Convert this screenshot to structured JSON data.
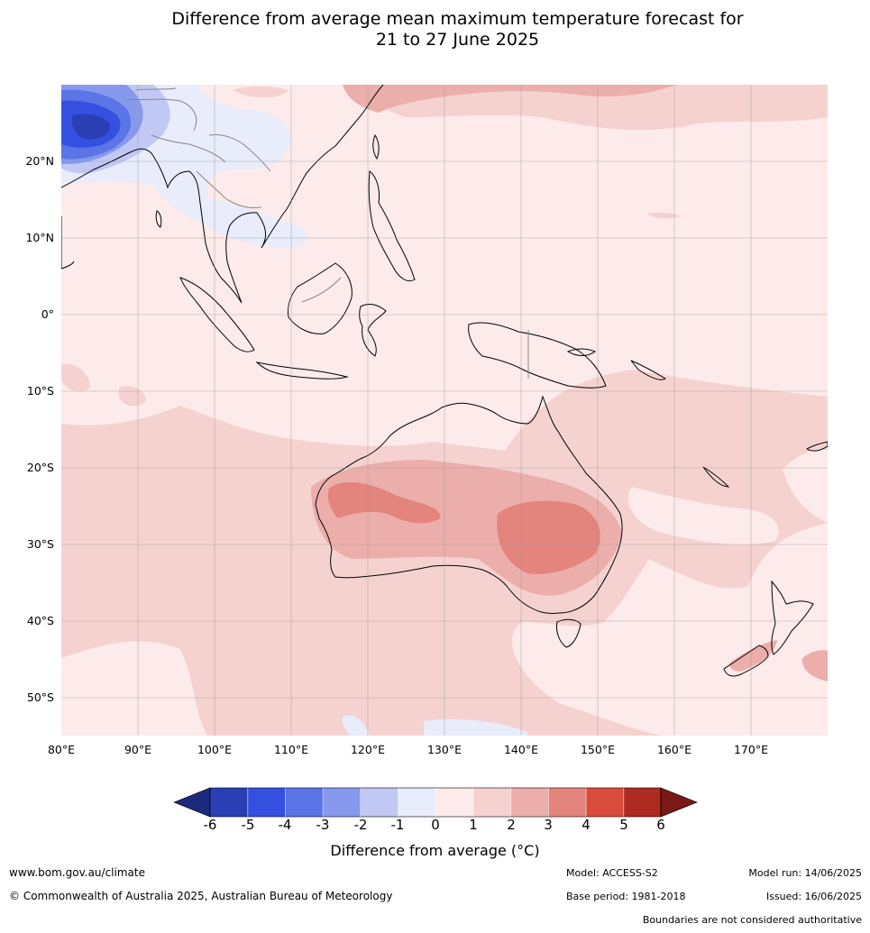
{
  "title": {
    "line1": "Difference from average mean maximum temperature forecast for",
    "line2": "21 to 27 June 2025"
  },
  "map": {
    "lat_labels": [
      "20°N",
      "10°N",
      "0°",
      "10°S",
      "20°S",
      "30°S",
      "40°S",
      "50°S"
    ],
    "lon_labels": [
      "80°E",
      "90°E",
      "100°E",
      "110°E",
      "120°E",
      "130°E",
      "140°E",
      "150°E",
      "160°E",
      "170°E"
    ],
    "lat_range": [
      -55,
      30
    ],
    "lon_range": [
      80,
      180
    ]
  },
  "colorbar": {
    "ticks": [
      "-6",
      "-5",
      "-4",
      "-3",
      "-2",
      "-1",
      "0",
      "1",
      "2",
      "3",
      "4",
      "5",
      "6"
    ],
    "colors": {
      "below_min": "#1c2a7d",
      "m6_m5": "#2a3fb3",
      "m5_m4": "#3550e0",
      "m4_m3": "#5b74e6",
      "m3_m2": "#8799ec",
      "m2_m1": "#c0c8f3",
      "m1_0": "#e8ecfb",
      "p0_1": "#fcebea",
      "p1_2": "#f5d2d0",
      "p2_3": "#ecaeab",
      "p3_4": "#e3847d",
      "p4_5": "#d94b3d",
      "p5_6": "#ad2b21",
      "above_max": "#7a1915"
    },
    "label": "Difference from average (°C)"
  },
  "footer": {
    "website": "www.bom.gov.au/climate",
    "copyright": "© Commonwealth of Australia 2025, Australian Bureau of Meteorology",
    "model": "Model: ACCESS-S2",
    "base_period": "Base period: 1981-2018",
    "model_run": "Model run: 14/06/2025",
    "issued": "Issued: 16/06/2025",
    "disclaimer": "Boundaries are not considered authoritative"
  }
}
